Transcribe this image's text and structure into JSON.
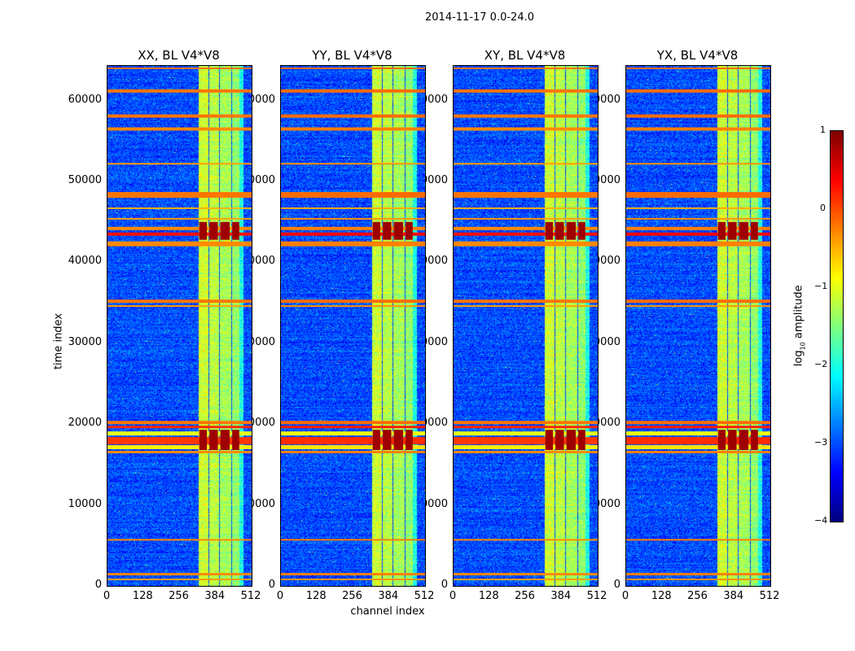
{
  "suptitle": "2014-11-17 0.0-24.0",
  "chart_data": {
    "type": "heatmap",
    "xlabel": "channel index",
    "ylabel": "time index",
    "xlim": [
      0,
      512
    ],
    "ylim": [
      0,
      64300
    ],
    "xticks": [
      "0",
      "128",
      "256",
      "384",
      "512"
    ],
    "xtick_values": [
      0,
      128,
      256,
      384,
      512
    ],
    "yticks": [
      "0",
      "10000",
      "20000",
      "30000",
      "40000",
      "50000",
      "60000"
    ],
    "ytick_values": [
      0,
      10000,
      20000,
      30000,
      40000,
      50000,
      60000
    ],
    "panels": [
      {
        "title": "XX, BL V4*V8"
      },
      {
        "title": "YY, BL V4*V8"
      },
      {
        "title": "XY, BL V4*V8"
      },
      {
        "title": "YX, BL V4*V8"
      }
    ],
    "background_level": -3.0,
    "channel_bands": [
      {
        "ch": [
          326,
          356
        ],
        "level": -1.1
      },
      {
        "ch": [
          362,
          395
        ],
        "level": -1.2
      },
      {
        "ch": [
          401,
          437
        ],
        "level": -1.3
      },
      {
        "ch": [
          443,
          471
        ],
        "level": -1.4
      },
      {
        "ch": [
          471,
          482
        ],
        "level": -2.0
      }
    ],
    "time_rows": [
      {
        "t": [
          63900,
          64100
        ],
        "level": -0.2
      },
      {
        "t": [
          61000,
          61400
        ],
        "level": -0.2
      },
      {
        "t": [
          57900,
          58300
        ],
        "level": -0.2
      },
      {
        "t": [
          56300,
          56700
        ],
        "level": -0.3
      },
      {
        "t": [
          52100,
          52300
        ],
        "level": -0.4
      },
      {
        "t": [
          48000,
          48700
        ],
        "level": -0.2
      },
      {
        "t": [
          46600,
          46800
        ],
        "level": -0.5
      },
      {
        "t": [
          45300,
          45500
        ],
        "level": -0.4
      },
      {
        "t": [
          44000,
          44400
        ],
        "level": -0.3
      },
      {
        "t": [
          43300,
          43700
        ],
        "level": 0.3
      },
      {
        "t": [
          42000,
          42600
        ],
        "level": -0.3
      },
      {
        "t": [
          35000,
          35400
        ],
        "level": -0.2
      },
      {
        "t": [
          34500,
          34700
        ],
        "level": -0.4
      },
      {
        "t": [
          20000,
          20400
        ],
        "level": -0.2
      },
      {
        "t": [
          19500,
          19800
        ],
        "level": 0.2
      },
      {
        "t": [
          18600,
          19100
        ],
        "level": -1.0
      },
      {
        "t": [
          17500,
          18400
        ],
        "level": 0.1
      },
      {
        "t": [
          16900,
          17400
        ],
        "level": -0.8
      },
      {
        "t": [
          16400,
          16700
        ],
        "level": -0.3
      },
      {
        "t": [
          5600,
          5800
        ],
        "level": -0.3
      },
      {
        "t": [
          1300,
          1600
        ],
        "level": -0.3
      },
      {
        "t": [
          700,
          900
        ],
        "level": -0.4
      }
    ],
    "saturated_blocks": [
      {
        "t": [
          42800,
          45000
        ],
        "level": 0.85
      },
      {
        "t": [
          16800,
          19300
        ],
        "level": 0.85
      }
    ],
    "colorbar": {
      "label_prefix": "log",
      "label_sub": "10",
      "label_suffix": " amplitude",
      "range": [
        -4,
        1
      ],
      "ticks": [
        "1",
        "0",
        "−1",
        "−2",
        "−3",
        "−4"
      ],
      "tick_values": [
        1,
        0,
        -1,
        -2,
        -3,
        -4
      ],
      "colormap": "jet"
    }
  }
}
